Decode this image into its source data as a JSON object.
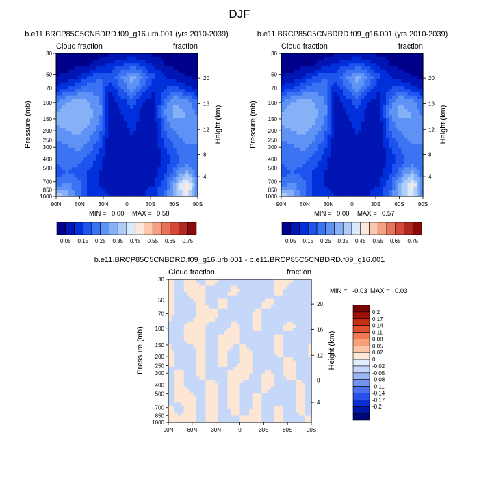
{
  "figure": {
    "title": "DJF",
    "colors": {
      "seq": [
        "#00008b",
        "#0015b4",
        "#0030dc",
        "#1e54ee",
        "#3a74f2",
        "#5e92f4",
        "#86b1f6",
        "#b0cdf8",
        "#dbe9fc",
        "#fde8db",
        "#fbc8ad",
        "#f5a181",
        "#e8735a",
        "#d24a37",
        "#b22722",
        "#8b0b0b"
      ],
      "diff": [
        "#00087a",
        "#0016a8",
        "#0a2ed0",
        "#2750e6",
        "#4b70ee",
        "#7192f2",
        "#9cb5f6",
        "#c5d8fa",
        "#e3efff",
        "#fde6d3",
        "#fbc6a8",
        "#f7a07a",
        "#f27a52",
        "#e4502e",
        "#c82e16",
        "#a11008",
        "#7a0505"
      ]
    }
  },
  "chart_data": [
    {
      "type": "heatmap",
      "title": "b.e11.BRCP85C5CNBDRD.f09_g16.urb.001 (yrs 2010-2039)",
      "left_label": "Cloud fraction",
      "right_label": "fraction",
      "xlabel": "",
      "ylabel": "Pressure (mb)",
      "y2label": "Height (km)",
      "x_ticks": [
        "90N",
        "60N",
        "30N",
        "0",
        "30S",
        "60S",
        "90S"
      ],
      "y_ticks": [
        "30",
        "50",
        "70",
        "100",
        "150",
        "200",
        "250",
        "300",
        "400",
        "500",
        "700",
        "850",
        "1000"
      ],
      "y2_ticks": [
        "20",
        "16",
        "12",
        "8",
        "4"
      ],
      "min_label": "MIN =",
      "min_value": "0.00",
      "max_label": "MAX =",
      "max_value": "0.58",
      "field": [
        [
          0.02,
          0.02,
          0.02,
          0.03,
          0.03,
          0.04,
          0.05,
          0.06,
          0.05,
          0.04,
          0.03,
          0.03,
          0.02,
          0.02
        ],
        [
          0.03,
          0.03,
          0.04,
          0.05,
          0.08,
          0.12,
          0.15,
          0.18,
          0.14,
          0.09,
          0.05,
          0.04,
          0.03,
          0.03
        ],
        [
          0.05,
          0.07,
          0.1,
          0.15,
          0.2,
          0.18,
          0.25,
          0.32,
          0.24,
          0.16,
          0.1,
          0.07,
          0.05,
          0.04
        ],
        [
          0.12,
          0.16,
          0.2,
          0.24,
          0.22,
          0.1,
          0.2,
          0.28,
          0.18,
          0.1,
          0.15,
          0.18,
          0.12,
          0.1
        ],
        [
          0.24,
          0.3,
          0.32,
          0.3,
          0.26,
          0.08,
          0.12,
          0.18,
          0.1,
          0.08,
          0.22,
          0.3,
          0.26,
          0.2
        ],
        [
          0.3,
          0.34,
          0.35,
          0.32,
          0.28,
          0.06,
          0.1,
          0.14,
          0.08,
          0.08,
          0.26,
          0.32,
          0.3,
          0.24
        ],
        [
          0.3,
          0.32,
          0.34,
          0.3,
          0.24,
          0.05,
          0.08,
          0.12,
          0.07,
          0.07,
          0.22,
          0.28,
          0.3,
          0.26
        ],
        [
          0.26,
          0.28,
          0.3,
          0.26,
          0.2,
          0.05,
          0.07,
          0.1,
          0.06,
          0.06,
          0.18,
          0.24,
          0.28,
          0.26
        ],
        [
          0.22,
          0.24,
          0.26,
          0.22,
          0.16,
          0.05,
          0.06,
          0.08,
          0.06,
          0.06,
          0.14,
          0.2,
          0.24,
          0.24
        ],
        [
          0.2,
          0.22,
          0.22,
          0.18,
          0.12,
          0.05,
          0.06,
          0.07,
          0.06,
          0.06,
          0.12,
          0.18,
          0.22,
          0.22
        ],
        [
          0.18,
          0.2,
          0.18,
          0.14,
          0.1,
          0.06,
          0.06,
          0.06,
          0.06,
          0.08,
          0.14,
          0.24,
          0.32,
          0.22
        ],
        [
          0.22,
          0.26,
          0.22,
          0.14,
          0.1,
          0.08,
          0.07,
          0.07,
          0.08,
          0.1,
          0.18,
          0.34,
          0.48,
          0.26
        ],
        [
          0.42,
          0.34,
          0.22,
          0.14,
          0.12,
          0.1,
          0.08,
          0.08,
          0.1,
          0.14,
          0.22,
          0.36,
          0.44,
          0.22
        ]
      ],
      "colorbar": [
        "0.05",
        "0.15",
        "0.25",
        "0.35",
        "0.45",
        "0.55",
        "0.65",
        "0.75"
      ]
    },
    {
      "type": "heatmap",
      "title": "b.e11.BRCP85C5CNBDRD.f09_g16.001 (yrs 2010-2039)",
      "left_label": "Cloud fraction",
      "right_label": "fraction",
      "xlabel": "",
      "ylabel": "Pressure (mb)",
      "y2label": "Height (km)",
      "x_ticks": [
        "90N",
        "60N",
        "30N",
        "0",
        "30S",
        "60S",
        "90S"
      ],
      "y_ticks": [
        "30",
        "50",
        "70",
        "100",
        "150",
        "200",
        "250",
        "300",
        "400",
        "500",
        "700",
        "850",
        "1000"
      ],
      "y2_ticks": [
        "20",
        "16",
        "12",
        "8",
        "4"
      ],
      "min_label": "MIN =",
      "min_value": "0.00",
      "max_label": "MAX =",
      "max_value": "0.57",
      "field": [
        [
          0.02,
          0.02,
          0.02,
          0.03,
          0.03,
          0.04,
          0.05,
          0.06,
          0.05,
          0.04,
          0.03,
          0.03,
          0.02,
          0.02
        ],
        [
          0.03,
          0.03,
          0.04,
          0.05,
          0.08,
          0.12,
          0.15,
          0.18,
          0.14,
          0.09,
          0.05,
          0.04,
          0.03,
          0.03
        ],
        [
          0.05,
          0.07,
          0.1,
          0.15,
          0.2,
          0.18,
          0.25,
          0.32,
          0.24,
          0.16,
          0.1,
          0.07,
          0.05,
          0.04
        ],
        [
          0.12,
          0.16,
          0.2,
          0.24,
          0.22,
          0.1,
          0.2,
          0.28,
          0.18,
          0.1,
          0.15,
          0.18,
          0.12,
          0.1
        ],
        [
          0.24,
          0.3,
          0.32,
          0.3,
          0.26,
          0.08,
          0.12,
          0.18,
          0.1,
          0.08,
          0.22,
          0.3,
          0.26,
          0.2
        ],
        [
          0.3,
          0.34,
          0.35,
          0.32,
          0.28,
          0.06,
          0.1,
          0.14,
          0.08,
          0.08,
          0.26,
          0.32,
          0.3,
          0.24
        ],
        [
          0.3,
          0.32,
          0.34,
          0.3,
          0.24,
          0.05,
          0.08,
          0.12,
          0.07,
          0.07,
          0.22,
          0.28,
          0.3,
          0.26
        ],
        [
          0.26,
          0.28,
          0.3,
          0.26,
          0.2,
          0.05,
          0.07,
          0.1,
          0.06,
          0.06,
          0.18,
          0.24,
          0.28,
          0.26
        ],
        [
          0.22,
          0.24,
          0.26,
          0.22,
          0.16,
          0.05,
          0.06,
          0.08,
          0.06,
          0.06,
          0.14,
          0.2,
          0.24,
          0.24
        ],
        [
          0.2,
          0.22,
          0.22,
          0.18,
          0.12,
          0.05,
          0.06,
          0.07,
          0.06,
          0.06,
          0.12,
          0.18,
          0.22,
          0.22
        ],
        [
          0.18,
          0.2,
          0.18,
          0.14,
          0.1,
          0.06,
          0.06,
          0.06,
          0.06,
          0.08,
          0.14,
          0.24,
          0.32,
          0.22
        ],
        [
          0.22,
          0.26,
          0.22,
          0.14,
          0.1,
          0.08,
          0.07,
          0.07,
          0.08,
          0.1,
          0.18,
          0.34,
          0.46,
          0.26
        ],
        [
          0.4,
          0.34,
          0.22,
          0.14,
          0.12,
          0.1,
          0.08,
          0.08,
          0.1,
          0.14,
          0.22,
          0.36,
          0.44,
          0.22
        ]
      ],
      "colorbar": [
        "0.05",
        "0.15",
        "0.25",
        "0.35",
        "0.45",
        "0.55",
        "0.65",
        "0.75"
      ]
    },
    {
      "type": "heatmap",
      "title": "b.e11.BRCP85C5CNBDRD.f09_g16.urb.001 - b.e11.BRCP85C5CNBDRD.f09_g16.001",
      "left_label": "Cloud fraction",
      "right_label": "fraction",
      "xlabel": "",
      "ylabel": "Pressure (mb)",
      "y2label": "Height (km)",
      "x_ticks": [
        "90N",
        "60N",
        "30N",
        "0",
        "30S",
        "60S",
        "90S"
      ],
      "y_ticks": [
        "30",
        "50",
        "70",
        "100",
        "150",
        "200",
        "250",
        "300",
        "400",
        "500",
        "700",
        "850",
        "1000"
      ],
      "y2_ticks": [
        "20",
        "16",
        "12",
        "8",
        "4"
      ],
      "min_label": "MIN =",
      "min_value": "-0.03",
      "max_label": "MAX =",
      "max_value": "0.03",
      "field": [
        [
          0.005,
          -0.005,
          0.005,
          -0.005,
          0.005,
          -0.005,
          -0.005,
          -0.005,
          -0.005,
          -0.005,
          0.005,
          0.005,
          -0.005,
          -0.005
        ],
        [
          0.005,
          -0.005,
          0.005,
          0.005,
          -0.005,
          -0.005,
          0.005,
          -0.005,
          -0.005,
          -0.005,
          0.005,
          -0.005,
          -0.005,
          -0.005
        ],
        [
          0.005,
          -0.005,
          -0.005,
          0.005,
          -0.005,
          0.005,
          -0.005,
          -0.005,
          -0.005,
          0.005,
          -0.005,
          -0.005,
          -0.005,
          -0.005
        ],
        [
          0.005,
          -0.005,
          -0.005,
          0.005,
          0.005,
          -0.005,
          -0.005,
          -0.005,
          0.005,
          -0.005,
          -0.005,
          -0.005,
          -0.005,
          -0.005
        ],
        [
          -0.005,
          -0.005,
          0.005,
          0.005,
          -0.005,
          -0.005,
          0.005,
          -0.005,
          0.005,
          -0.005,
          -0.005,
          0.005,
          -0.005,
          -0.005
        ],
        [
          -0.005,
          -0.005,
          0.005,
          0.005,
          -0.005,
          0.005,
          0.005,
          -0.005,
          -0.005,
          -0.005,
          0.005,
          -0.005,
          -0.005,
          -0.005
        ],
        [
          0.005,
          -0.005,
          -0.005,
          0.005,
          -0.005,
          0.005,
          -0.005,
          0.005,
          -0.005,
          -0.005,
          0.005,
          -0.005,
          -0.005,
          0.005
        ],
        [
          0.005,
          -0.005,
          -0.005,
          0.005,
          -0.005,
          0.005,
          -0.005,
          0.005,
          -0.005,
          -0.005,
          -0.005,
          0.005,
          -0.005,
          -0.005
        ],
        [
          -0.005,
          0.005,
          -0.005,
          0.005,
          -0.005,
          -0.005,
          0.005,
          0.005,
          -0.005,
          0.005,
          -0.005,
          0.005,
          -0.005,
          -0.005
        ],
        [
          -0.005,
          0.005,
          -0.005,
          -0.005,
          0.005,
          -0.005,
          0.005,
          -0.005,
          -0.005,
          0.005,
          -0.005,
          -0.005,
          0.005,
          -0.005
        ],
        [
          -0.005,
          0.005,
          0.005,
          -0.005,
          0.005,
          -0.005,
          0.005,
          -0.005,
          0.005,
          -0.005,
          -0.005,
          -0.005,
          0.005,
          -0.005
        ],
        [
          0.005,
          -0.005,
          0.005,
          -0.005,
          0.005,
          -0.005,
          0.005,
          -0.005,
          0.005,
          -0.005,
          0.005,
          -0.005,
          0.005,
          -0.005
        ],
        [
          0.005,
          0.005,
          0.005,
          -0.005,
          0.005,
          -0.005,
          -0.005,
          0.005,
          0.005,
          -0.005,
          0.005,
          -0.005,
          -0.005,
          0.005
        ]
      ],
      "colorbar": [
        "0.2",
        "0.17",
        "0.14",
        "0.11",
        "0.08",
        "0.05",
        "0.02",
        "0",
        "-0.02",
        "-0.05",
        "-0.08",
        "-0.11",
        "-0.14",
        "-0.17",
        "-0.2"
      ]
    }
  ]
}
